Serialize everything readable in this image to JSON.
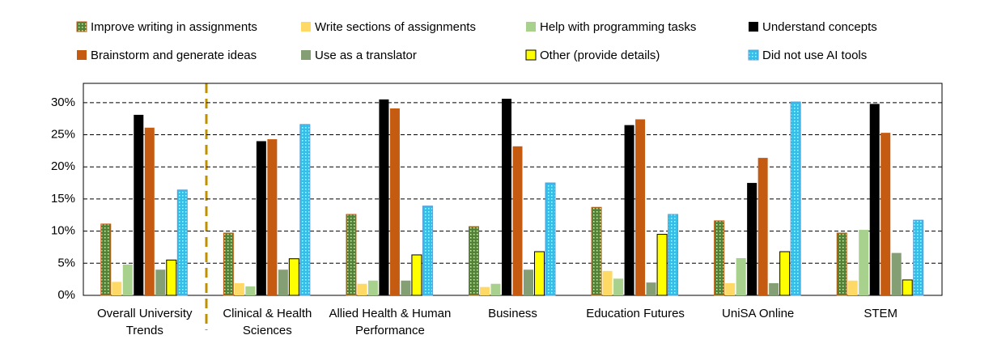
{
  "chart_data": {
    "type": "bar",
    "categories": [
      "Overall University Trends",
      "Clinical & Health Sciences",
      "Allied Health & Human Performance",
      "Business",
      "Education Futures",
      "UniSA Online",
      "STEM"
    ],
    "series": [
      {
        "name": "Improve writing in assignments",
        "color": "#548235",
        "pattern": "dots",
        "values": [
          11.1,
          9.7,
          12.6,
          10.7,
          13.7,
          11.6,
          9.7
        ]
      },
      {
        "name": "Write sections of assignments",
        "color": "#ffd966",
        "values": [
          2.1,
          1.9,
          1.8,
          1.3,
          3.8,
          1.9,
          2.3
        ]
      },
      {
        "name": "Help with programming tasks",
        "color": "#a9d18e",
        "values": [
          4.8,
          1.4,
          2.3,
          1.8,
          2.6,
          5.8,
          10.2
        ]
      },
      {
        "name": "Understand concepts",
        "color": "#000000",
        "values": [
          28.1,
          24.0,
          30.5,
          30.6,
          26.5,
          17.5,
          29.8
        ]
      },
      {
        "name": "Brainstorm and generate ideas",
        "color": "#c55a11",
        "values": [
          26.1,
          24.3,
          29.1,
          23.2,
          27.4,
          21.4,
          25.3
        ]
      },
      {
        "name": "Use as a translator",
        "color": "#849f74",
        "values": [
          4.0,
          4.0,
          2.3,
          4.0,
          2.0,
          1.9,
          6.6
        ]
      },
      {
        "name": "Other (provide details)",
        "color": "#ffff00",
        "values": [
          5.5,
          5.7,
          6.3,
          6.8,
          9.5,
          6.8,
          2.4
        ]
      },
      {
        "name": "Did not use AI tools",
        "color": "#33bfe8",
        "pattern": "dots",
        "values": [
          16.4,
          26.6,
          13.9,
          17.5,
          12.6,
          30.1,
          11.7
        ]
      }
    ],
    "ylim": [
      0,
      33
    ],
    "yticks": [
      {
        "value": 0,
        "label": "0%"
      },
      {
        "value": 5,
        "label": "5%"
      },
      {
        "value": 10,
        "label": "10%"
      },
      {
        "value": 15,
        "label": "15%"
      },
      {
        "value": 20,
        "label": "20%"
      },
      {
        "value": 25,
        "label": "25%"
      },
      {
        "value": 30,
        "label": "30%"
      }
    ],
    "grid": true
  }
}
